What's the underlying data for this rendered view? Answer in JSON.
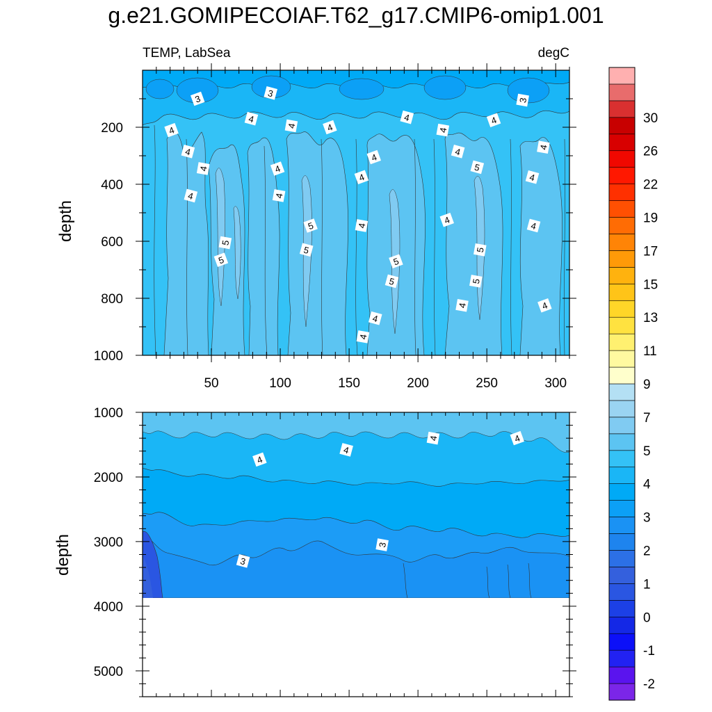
{
  "chart_data": {
    "type": "heatmap",
    "title": "g.e21.GOMIPECOIAF.T62_g17.CMIP6-omip1.001",
    "variable_label": "TEMP, LabSea",
    "units_label": "degC",
    "top_panel": {
      "ylabel": "depth",
      "yrange": [
        0,
        1000
      ],
      "yticks": [
        200,
        400,
        600,
        800,
        1000
      ],
      "xrange": [
        0,
        310
      ],
      "xticks": [
        50,
        100,
        150,
        200,
        250,
        300
      ],
      "contour_labels": [
        {
          "x": 40,
          "y": 100,
          "v": "3"
        },
        {
          "x": 93,
          "y": 80,
          "v": "3"
        },
        {
          "x": 276,
          "y": 105,
          "v": "3"
        },
        {
          "x": 21,
          "y": 210,
          "v": "4"
        },
        {
          "x": 79,
          "y": 170,
          "v": "4"
        },
        {
          "x": 108,
          "y": 195,
          "v": "4"
        },
        {
          "x": 136,
          "y": 200,
          "v": "4"
        },
        {
          "x": 192,
          "y": 165,
          "v": "4"
        },
        {
          "x": 218,
          "y": 210,
          "v": "4"
        },
        {
          "x": 255,
          "y": 175,
          "v": "4"
        },
        {
          "x": 33,
          "y": 285,
          "v": "4"
        },
        {
          "x": 44,
          "y": 345,
          "v": "4"
        },
        {
          "x": 98,
          "y": 345,
          "v": "4"
        },
        {
          "x": 35,
          "y": 440,
          "v": "4"
        },
        {
          "x": 99,
          "y": 440,
          "v": "4"
        },
        {
          "x": 168,
          "y": 305,
          "v": "4"
        },
        {
          "x": 229,
          "y": 285,
          "v": "4"
        },
        {
          "x": 291,
          "y": 270,
          "v": "4"
        },
        {
          "x": 159,
          "y": 375,
          "v": "4"
        },
        {
          "x": 283,
          "y": 375,
          "v": "4"
        },
        {
          "x": 159,
          "y": 545,
          "v": "4"
        },
        {
          "x": 221,
          "y": 525,
          "v": "4"
        },
        {
          "x": 284,
          "y": 545,
          "v": "4"
        },
        {
          "x": 232,
          "y": 825,
          "v": "4"
        },
        {
          "x": 292,
          "y": 825,
          "v": "4"
        },
        {
          "x": 169,
          "y": 870,
          "v": "4"
        },
        {
          "x": 160,
          "y": 935,
          "v": "4"
        },
        {
          "x": 122,
          "y": 545,
          "v": "5"
        },
        {
          "x": 119,
          "y": 630,
          "v": "5"
        },
        {
          "x": 60,
          "y": 605,
          "v": "5"
        },
        {
          "x": 57,
          "y": 665,
          "v": "5"
        },
        {
          "x": 243,
          "y": 340,
          "v": "5"
        },
        {
          "x": 245,
          "y": 630,
          "v": "5"
        },
        {
          "x": 184,
          "y": 670,
          "v": "5"
        },
        {
          "x": 181,
          "y": 740,
          "v": "5"
        },
        {
          "x": 242,
          "y": 740,
          "v": "5"
        }
      ]
    },
    "bottom_panel": {
      "ylabel": "depth",
      "yrange": [
        1000,
        5400
      ],
      "yticks": [
        1000,
        2000,
        3000,
        4000,
        5000
      ],
      "xrange": [
        0,
        310
      ],
      "data_bottom": 3870,
      "contour_labels": [
        {
          "x": 85,
          "y": 1730,
          "v": "4"
        },
        {
          "x": 148,
          "y": 1580,
          "v": "4"
        },
        {
          "x": 211,
          "y": 1400,
          "v": "4"
        },
        {
          "x": 272,
          "y": 1400,
          "v": "4"
        },
        {
          "x": 73,
          "y": 3300,
          "v": "3"
        },
        {
          "x": 174,
          "y": 3050,
          "v": "3"
        }
      ]
    },
    "colorbar": {
      "labels": [
        "-2",
        "-1",
        "0",
        "1",
        "2",
        "3",
        "4",
        "5",
        "7",
        "9",
        "11",
        "13",
        "15",
        "17",
        "19",
        "22",
        "26",
        "30"
      ],
      "colors": [
        "#7b26e8",
        "#5a14ee",
        "#2222f2",
        "#0c10f8",
        "#1428e6",
        "#1c40e6",
        "#2a56e2",
        "#3460dd",
        "#2c70e6",
        "#1e84ee",
        "#1a92f4",
        "#0ca0f6",
        "#00aaf6",
        "#1ab6f6",
        "#34c2f6",
        "#5cc4f2",
        "#80cbf2",
        "#9ad4f2",
        "#b4e0f4",
        "#ffffcc",
        "#fff9a0",
        "#fff070",
        "#ffe240",
        "#ffd628",
        "#ffc418",
        "#ffb20e",
        "#ff9a08",
        "#ff8406",
        "#ff6c04",
        "#ff5002",
        "#ff3000",
        "#ff1800",
        "#f00800",
        "#d80000",
        "#c80000",
        "#d93030",
        "#e86c6c",
        "#ffb0b0"
      ]
    }
  }
}
